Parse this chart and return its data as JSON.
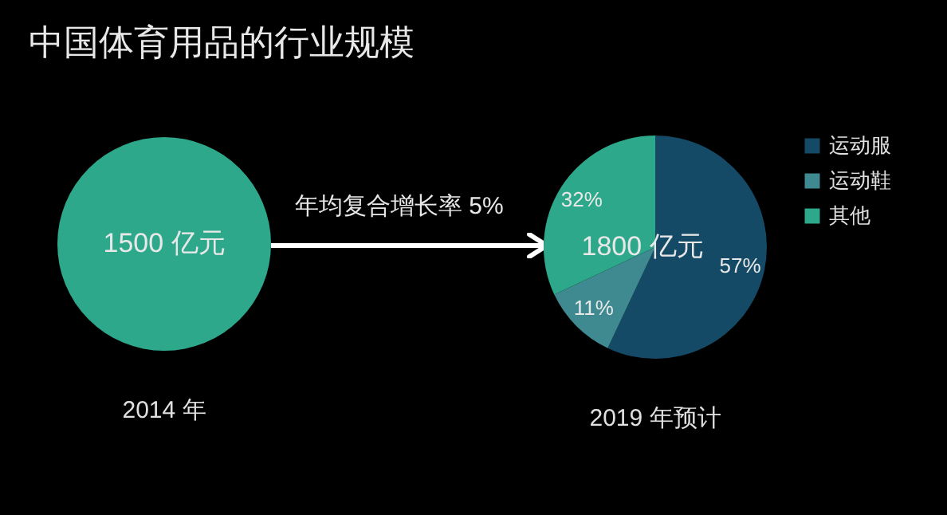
{
  "chart_data": [
    {
      "type": "pie",
      "title": "中国体育用品的行业规模",
      "categories": [
        null
      ],
      "values": [
        1500
      ],
      "value_labels": [
        "1500 亿元"
      ],
      "colors": [
        "#2ea88b"
      ],
      "xlabel": "2014 年",
      "annotations": [
        "年均复合增长率 5%"
      ]
    },
    {
      "type": "pie",
      "categories": [
        "运动服",
        "运动鞋",
        "其他"
      ],
      "values": [
        57,
        11,
        32
      ],
      "value_labels": [
        "57%",
        "11%",
        "32%"
      ],
      "colors": [
        "#154a66",
        "#3e8a90",
        "#2ea88b"
      ],
      "xlabel": "2019 年预计",
      "annotations": [
        "1800 亿元"
      ],
      "legend": "right"
    }
  ]
}
